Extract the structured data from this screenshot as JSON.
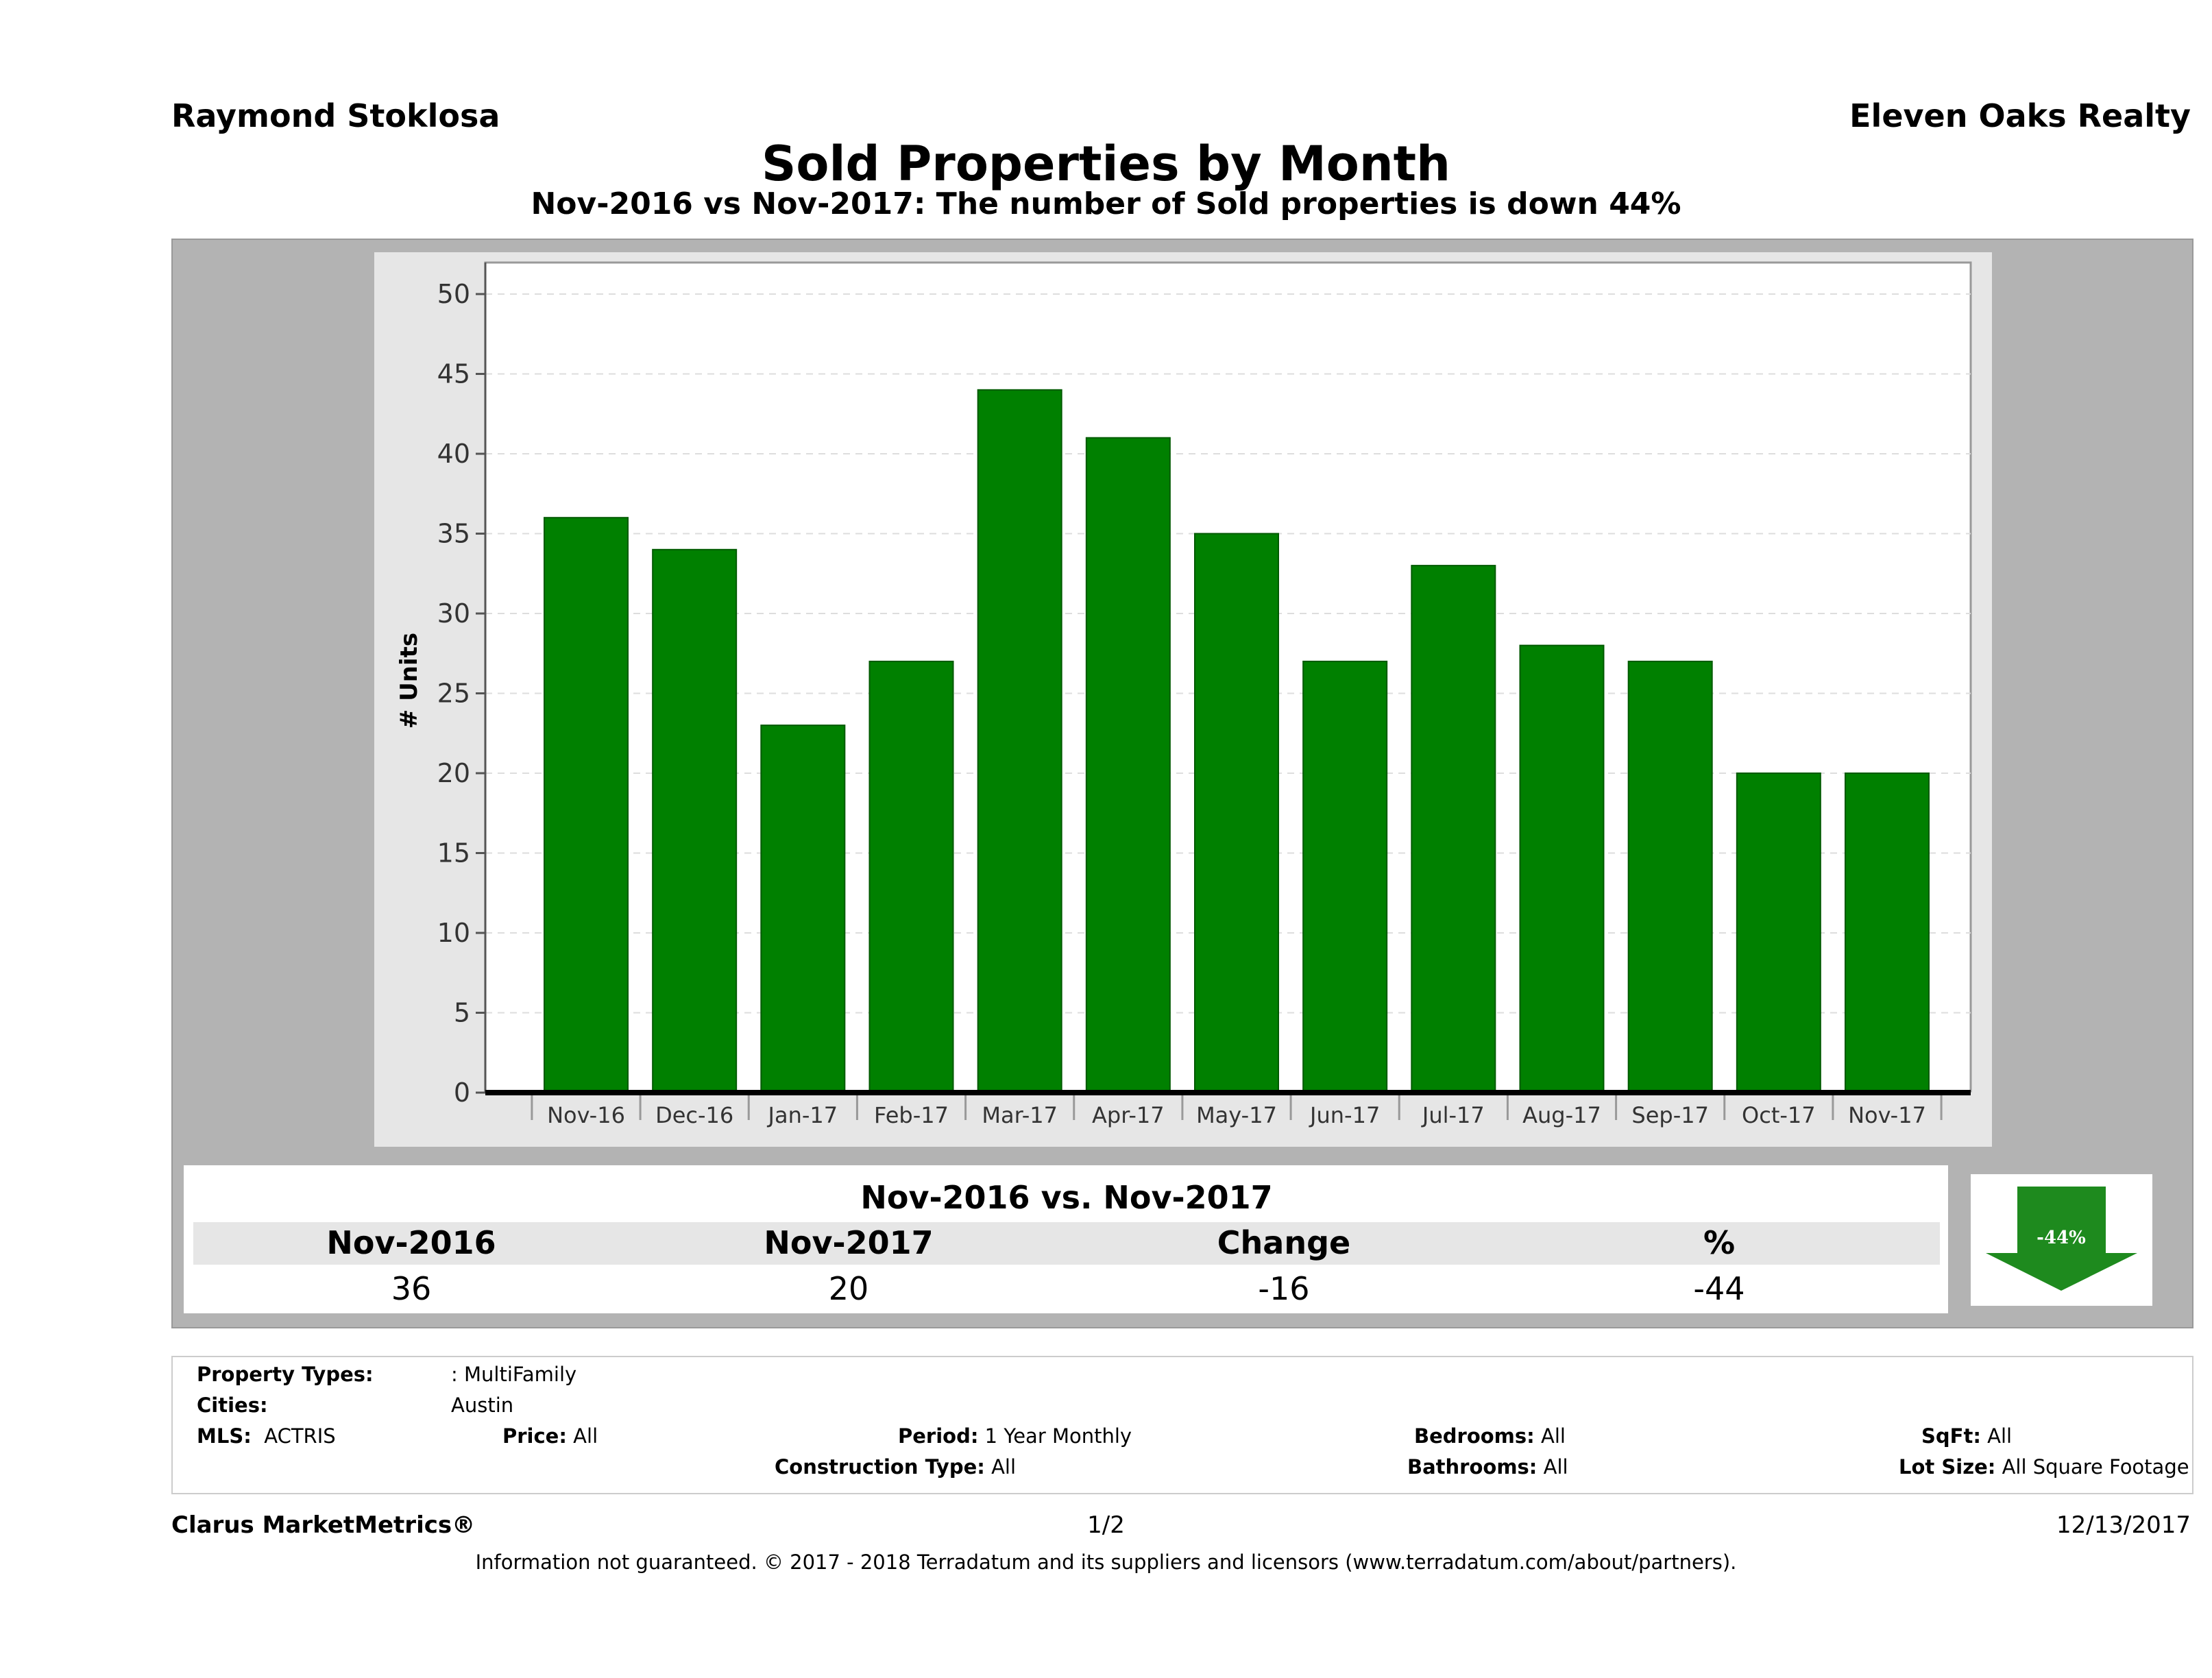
{
  "header": {
    "agent": "Raymond Stoklosa",
    "brokerage": "Eleven Oaks Realty"
  },
  "chart_data": {
    "type": "bar",
    "title": "Sold Properties by Month",
    "subtitle": "Nov-2016 vs Nov-2017: The number of Sold  properties is down 44%",
    "ylabel": "# Units",
    "xlabel": "",
    "ylim": [
      0,
      52
    ],
    "yticks": [
      0,
      5,
      10,
      15,
      20,
      25,
      30,
      35,
      40,
      45,
      50
    ],
    "grid": true,
    "categories": [
      "Nov-16",
      "Dec-16",
      "Jan-17",
      "Feb-17",
      "Mar-17",
      "Apr-17",
      "May-17",
      "Jun-17",
      "Jul-17",
      "Aug-17",
      "Sep-17",
      "Oct-17",
      "Nov-17"
    ],
    "values": [
      36,
      34,
      23,
      27,
      44,
      41,
      35,
      27,
      33,
      28,
      27,
      20,
      20
    ],
    "bar_color": "#008000"
  },
  "summary": {
    "title": "Nov-2016 vs. Nov-2017",
    "headers": [
      "Nov-2016",
      "Nov-2017",
      "Change",
      "%"
    ],
    "values": [
      "36",
      "20",
      "-16",
      "-44"
    ],
    "badge": "-44%",
    "badge_color": "#1e8a1e"
  },
  "criteria": {
    "property_types_label": "Property Types:",
    "property_types_value": ": MultiFamily",
    "cities_label": "Cities:",
    "cities_value": "Austin",
    "mls_label": "MLS:",
    "mls_value": "ACTRIS",
    "price_label": "Price:",
    "price_value": "All",
    "period_label": "Period:",
    "period_value": "1 Year Monthly",
    "bedrooms_label": "Bedrooms:",
    "bedrooms_value": "All",
    "sqft_label": "SqFt:",
    "sqft_value": "All",
    "construction_label": "Construction Type:",
    "construction_value": "All",
    "bathrooms_label": "Bathrooms:",
    "bathrooms_value": "All",
    "lotsize_label": "Lot Size:",
    "lotsize_value": "All Square Footage"
  },
  "footer": {
    "brand": "Clarus MarketMetrics®",
    "page": "1/2",
    "date": "12/13/2017",
    "disclaimer": "Information not guaranteed. © 2017 - 2018 Terradatum and its suppliers and licensors (www.terradatum.com/about/partners)."
  }
}
